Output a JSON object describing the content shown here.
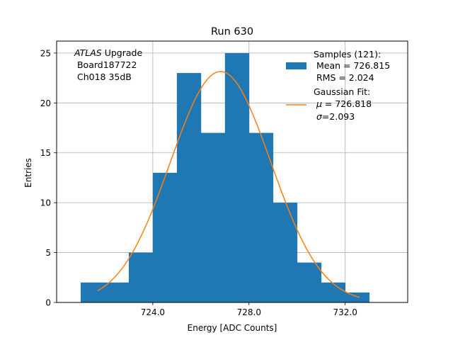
{
  "chart_data": {
    "type": "bar",
    "title": "Run 630",
    "xlabel": "Energy [ADC Counts]",
    "ylabel": "Entries",
    "xlim": [
      720.0,
      734.6
    ],
    "ylim": [
      0,
      26.2
    ],
    "grid": true,
    "x_ticks": [
      724,
      728,
      732
    ],
    "x_tick_labels": [
      "724.0",
      "728.0",
      "732.0"
    ],
    "y_ticks": [
      0,
      5,
      10,
      15,
      20,
      25
    ],
    "y_tick_labels": [
      "0",
      "5",
      "10",
      "15",
      "20",
      "25"
    ],
    "bin_edges": [
      721.0,
      722.0,
      723.0,
      724.0,
      725.0,
      726.0,
      727.0,
      728.0,
      729.0,
      730.0,
      731.0,
      732.0,
      733.0
    ],
    "counts": [
      2,
      2,
      5,
      13,
      23,
      17,
      25,
      17,
      10,
      4,
      2,
      1
    ],
    "bar_color": "#1f77b4",
    "fit": {
      "amplitude": 23.15,
      "mu": 726.818,
      "sigma": 2.093,
      "x_range": [
        721.7,
        732.6
      ],
      "color": "#ff7f0e"
    },
    "annotation": {
      "prefix_italic": "ATLAS",
      "prefix_rest": " Upgrade",
      "line2": " Board187722",
      "line3": " Ch018 35dB"
    },
    "legend": {
      "position": "upper-right",
      "samples_line1": "Samples (121):",
      "samples_line2": " Mean = 726.815",
      "samples_line3": " RMS = 2.024",
      "fit_line1": "Gaussian Fit:",
      "fit_mu_symbol": "μ",
      "fit_mu_value": " = 726.818",
      "fit_sigma_symbol": "σ",
      "fit_sigma_value": "=2.093"
    }
  }
}
